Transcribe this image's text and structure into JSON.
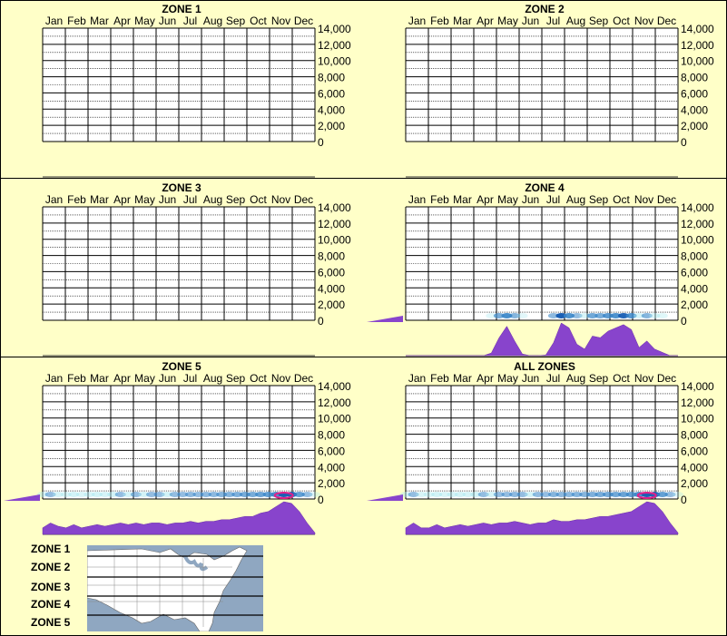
{
  "months": [
    "Jan",
    "Feb",
    "Mar",
    "Apr",
    "May",
    "Jun",
    "Jul",
    "Aug",
    "Sep",
    "Oct",
    "Nov",
    "Dec"
  ],
  "y_ticks": [
    "14,000",
    "12,000",
    "10,000",
    "8,000",
    "6,000",
    "4,000",
    "2,000",
    "0"
  ],
  "colors": {
    "background": "#ffffc8",
    "density": "#8844cc",
    "heat_low": "#a8e8f0",
    "heat_mid": "#1a5fb4",
    "heat_high": "#e0208a"
  },
  "chart_data": [
    {
      "type": "heatmap",
      "title": "ZONE 1",
      "ylim": [
        0,
        14000
      ],
      "y_density_bar": false,
      "x_density": []
    },
    {
      "type": "heatmap",
      "title": "ZONE 2",
      "ylim": [
        0,
        14000
      ],
      "y_density_bar": false,
      "x_density": []
    },
    {
      "type": "heatmap",
      "title": "ZONE 3",
      "ylim": [
        0,
        14000
      ],
      "y_density_bar": false,
      "x_density": []
    },
    {
      "type": "heatmap",
      "title": "ZONE 4",
      "ylim": [
        0,
        14000
      ],
      "y_density_bar": true,
      "x_density": [
        0,
        0,
        0,
        0,
        0,
        0,
        0,
        0,
        0,
        0,
        0,
        0.08,
        0.55,
        0.9,
        0.45,
        0.05,
        0,
        0,
        0.02,
        0.4,
        1.0,
        0.85,
        0.35,
        0.2,
        0.6,
        0.55,
        0.75,
        0.85,
        0.95,
        0.8,
        0.25,
        0.45,
        0.2,
        0.1,
        0,
        0
      ]
    },
    {
      "type": "heatmap",
      "title": "ZONE 5",
      "ylim": [
        0,
        14000
      ],
      "y_density_bar": true,
      "x_density": [
        0.2,
        0.35,
        0.25,
        0.2,
        0.3,
        0.2,
        0.25,
        0.3,
        0.25,
        0.3,
        0.35,
        0.3,
        0.35,
        0.3,
        0.35,
        0.35,
        0.3,
        0.35,
        0.35,
        0.4,
        0.35,
        0.4,
        0.4,
        0.45,
        0.45,
        0.5,
        0.55,
        0.55,
        0.65,
        0.7,
        0.85,
        1.0,
        0.95,
        0.7,
        0.35,
        0.05
      ]
    },
    {
      "type": "heatmap",
      "title": "ALL ZONES",
      "ylim": [
        0,
        14000
      ],
      "y_density_bar": true,
      "x_density": [
        0.2,
        0.35,
        0.2,
        0.2,
        0.3,
        0.2,
        0.25,
        0.3,
        0.25,
        0.3,
        0.35,
        0.3,
        0.35,
        0.35,
        0.4,
        0.35,
        0.3,
        0.35,
        0.35,
        0.45,
        0.4,
        0.4,
        0.45,
        0.45,
        0.5,
        0.55,
        0.55,
        0.6,
        0.65,
        0.7,
        0.85,
        1.0,
        0.95,
        0.7,
        0.35,
        0.05
      ]
    }
  ],
  "legend": {
    "zones": [
      "ZONE 1",
      "ZONE 2",
      "ZONE 3",
      "ZONE 4",
      "ZONE 5"
    ]
  }
}
